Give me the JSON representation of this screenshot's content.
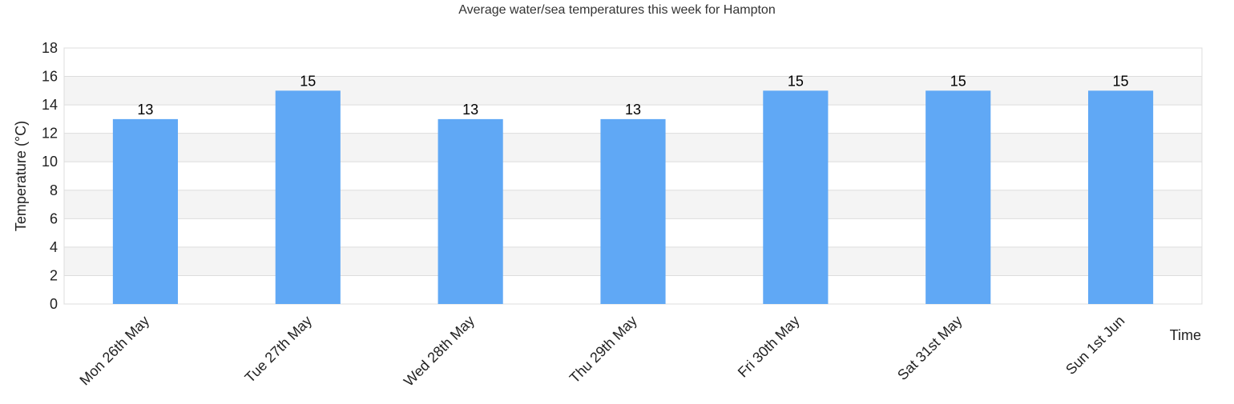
{
  "chart_data": {
    "type": "bar",
    "title": "Average water/sea temperatures this week for Hampton",
    "xlabel": "Time",
    "ylabel": "Temperature (°C)",
    "categories": [
      "Mon 26th May",
      "Tue 27th May",
      "Wed 28th May",
      "Thu 29th May",
      "Fri 30th May",
      "Sat 31st May",
      "Sun 1st Jun"
    ],
    "values": [
      13,
      15,
      13,
      13,
      15,
      15,
      15
    ],
    "ylim": [
      0,
      18
    ],
    "yticks": [
      0,
      2,
      4,
      6,
      8,
      10,
      12,
      14,
      16,
      18
    ],
    "grid": true,
    "alternating_bands": true,
    "bar_color": "#60a8f5",
    "band_color": "#f4f4f4",
    "grid_color": "#dddddd"
  }
}
